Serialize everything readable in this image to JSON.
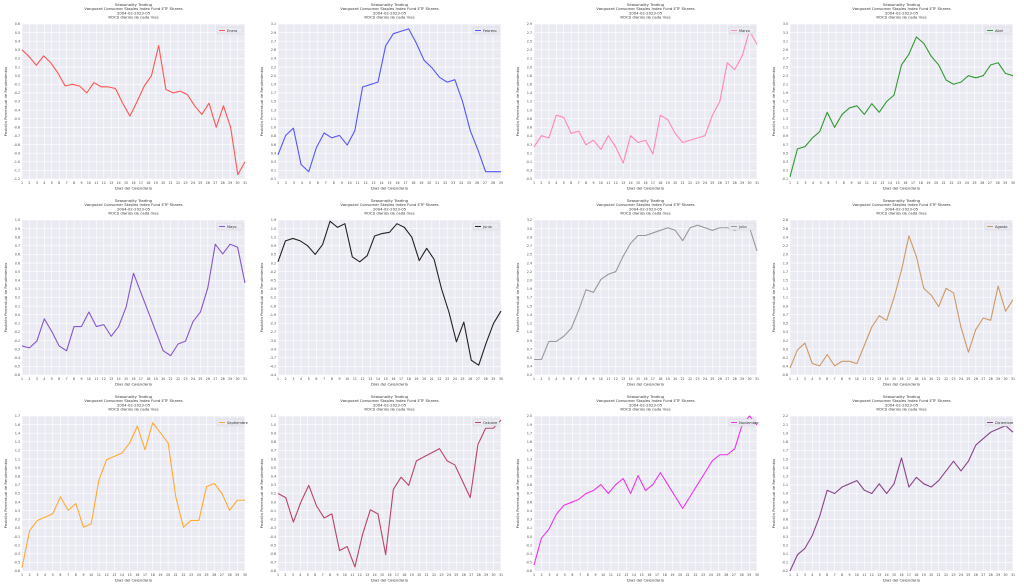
{
  "common": {
    "title_lines": [
      "Seasonality Trading",
      "Vanguard Consumer Staples Index Fund ETF Shares",
      "2004-02-2023-05",
      "ROCS diarios de cada mes"
    ],
    "xlabel": "Dias del Calendario",
    "ylabel": "Posición Porcentual de Rendimientos"
  },
  "chart_data": [
    {
      "type": "line",
      "legend": "Enero",
      "color": "#ff5555",
      "days": 31,
      "ylim": [
        -1.2,
        0.6
      ],
      "values": [
        0.3,
        0.22,
        0.12,
        0.23,
        0.15,
        0.03,
        -0.12,
        -0.1,
        -0.12,
        -0.2,
        -0.08,
        -0.13,
        -0.13,
        -0.15,
        -0.32,
        -0.47,
        -0.3,
        -0.12,
        0.0,
        0.35,
        -0.16,
        -0.2,
        -0.18,
        -0.22,
        -0.35,
        -0.45,
        -0.32,
        -0.6,
        -0.35,
        -0.6,
        -1.15,
        -1.0
      ]
    },
    {
      "type": "line",
      "legend": "Febrero",
      "color": "#5555ff",
      "days": 29,
      "ylim": [
        -0.1,
        3.1
      ],
      "values": [
        0.4,
        0.8,
        0.95,
        0.2,
        0.05,
        0.55,
        0.85,
        0.75,
        0.8,
        0.6,
        0.9,
        1.8,
        1.85,
        1.9,
        2.65,
        2.9,
        2.95,
        3.0,
        2.7,
        2.35,
        2.2,
        2.0,
        1.9,
        1.95,
        1.5,
        0.9,
        0.5,
        0.05,
        0.05,
        0.05
      ]
    },
    {
      "type": "line",
      "legend": "Marzo",
      "color": "#ff88bb",
      "days": 31,
      "ylim": [
        -0.5,
        2.9
      ],
      "values": [
        0.2,
        0.45,
        0.4,
        0.9,
        0.85,
        0.5,
        0.55,
        0.25,
        0.35,
        0.15,
        0.45,
        0.2,
        -0.15,
        0.45,
        0.3,
        0.35,
        0.05,
        0.9,
        0.8,
        0.5,
        0.3,
        0.35,
        0.4,
        0.45,
        0.9,
        1.2,
        2.05,
        1.9,
        2.2,
        2.75,
        2.45
      ]
    },
    {
      "type": "line",
      "legend": "Abril",
      "color": "#339933",
      "days": 30,
      "ylim": [
        -0.1,
        3.5
      ],
      "values": [
        -0.05,
        0.6,
        0.65,
        0.85,
        1.0,
        1.45,
        1.1,
        1.4,
        1.55,
        1.6,
        1.4,
        1.65,
        1.45,
        1.7,
        1.85,
        2.55,
        2.8,
        3.2,
        3.05,
        2.75,
        2.55,
        2.2,
        2.1,
        2.15,
        2.3,
        2.25,
        2.3,
        2.55,
        2.6,
        2.35,
        2.3
      ]
    },
    {
      "type": "line",
      "legend": "Mayo",
      "color": "#8855cc",
      "days": 31,
      "ylim": [
        -0.6,
        1.0
      ],
      "values": [
        -0.3,
        -0.32,
        -0.25,
        -0.02,
        -0.15,
        -0.3,
        -0.35,
        -0.1,
        -0.1,
        0.05,
        -0.1,
        -0.08,
        -0.2,
        -0.1,
        0.1,
        0.45,
        0.25,
        0.05,
        -0.15,
        -0.35,
        -0.4,
        -0.28,
        -0.25,
        -0.05,
        0.05,
        0.3,
        0.75,
        0.65,
        0.75,
        0.72,
        0.35
      ]
    },
    {
      "type": "line",
      "legend": "Junio",
      "color": "#222222",
      "days": 30,
      "ylim": [
        -4.4,
        1.9
      ],
      "values": [
        0.2,
        1.05,
        1.15,
        1.05,
        0.85,
        0.5,
        0.9,
        1.85,
        1.6,
        1.75,
        0.4,
        0.2,
        0.45,
        1.25,
        1.35,
        1.4,
        1.75,
        1.6,
        1.2,
        0.25,
        0.75,
        0.3,
        -0.9,
        -1.85,
        -3.05,
        -2.25,
        -3.8,
        -4.0,
        -3.1,
        -2.3,
        -1.8
      ]
    },
    {
      "type": "line",
      "legend": "Julio",
      "color": "#999999",
      "days": 31,
      "ylim": [
        0.2,
        3.2
      ],
      "values": [
        0.5,
        0.5,
        0.85,
        0.85,
        0.95,
        1.1,
        1.45,
        1.85,
        1.8,
        2.05,
        2.15,
        2.2,
        2.5,
        2.75,
        2.9,
        2.9,
        2.95,
        3.0,
        3.05,
        3.0,
        2.8,
        3.05,
        3.1,
        3.05,
        3.0,
        3.05,
        3.05,
        3.0,
        3.05,
        3.05,
        2.6
      ]
    },
    {
      "type": "line",
      "legend": "Agosto",
      "color": "#cc9966",
      "days": 31,
      "ylim": [
        -0.6,
        2.8
      ],
      "values": [
        -0.45,
        -0.05,
        0.1,
        -0.35,
        -0.4,
        -0.15,
        -0.4,
        -0.3,
        -0.3,
        -0.35,
        0.05,
        0.45,
        0.7,
        0.6,
        1.1,
        1.7,
        2.45,
        2.0,
        1.3,
        1.15,
        0.9,
        1.3,
        1.2,
        0.45,
        -0.1,
        0.4,
        0.65,
        0.6,
        1.35,
        0.8,
        1.05
      ]
    },
    {
      "type": "line",
      "legend": "Septiembre",
      "color": "#ffaa33",
      "days": 30,
      "ylim": [
        -0.6,
        1.7
      ],
      "values": [
        -0.55,
        0.0,
        0.15,
        0.2,
        0.25,
        0.5,
        0.3,
        0.4,
        0.05,
        0.1,
        0.75,
        1.05,
        1.1,
        1.15,
        1.3,
        1.55,
        1.2,
        1.6,
        1.45,
        1.3,
        0.5,
        0.05,
        0.15,
        0.15,
        0.65,
        0.7,
        0.55,
        0.3,
        0.45,
        0.45
      ]
    },
    {
      "type": "line",
      "legend": "Octubre",
      "color": "#bb4466",
      "days": 31,
      "ylim": [
        -0.8,
        1.1
      ],
      "values": [
        0.15,
        0.1,
        -0.2,
        0.05,
        0.25,
        0.0,
        -0.15,
        -0.1,
        -0.55,
        -0.5,
        -0.75,
        -0.35,
        -0.05,
        -0.1,
        -0.6,
        0.2,
        0.35,
        0.25,
        0.55,
        0.6,
        0.65,
        0.7,
        0.55,
        0.5,
        0.3,
        0.1,
        0.75,
        0.95,
        0.95,
        1.05
      ]
    },
    {
      "type": "line",
      "legend": "Noviembre",
      "color": "#ee33ee",
      "days": 30,
      "ylim": [
        -0.6,
        2.0
      ],
      "values": [
        -0.5,
        -0.05,
        0.1,
        0.35,
        0.5,
        0.55,
        0.6,
        0.7,
        0.75,
        0.85,
        0.7,
        0.85,
        0.95,
        0.7,
        1.0,
        0.75,
        0.85,
        1.05,
        0.85,
        0.65,
        0.45,
        0.65,
        0.85,
        1.05,
        1.25,
        1.35,
        1.35,
        1.45,
        1.85,
        2.0,
        1.85
      ]
    },
    {
      "type": "line",
      "legend": "Diciembre",
      "color": "#884488",
      "days": 31,
      "ylim": [
        -0.2,
        2.2
      ],
      "values": [
        -0.2,
        0.05,
        0.15,
        0.35,
        0.65,
        1.05,
        1.0,
        1.1,
        1.15,
        1.2,
        1.05,
        1.0,
        1.15,
        1.0,
        1.15,
        1.55,
        1.1,
        1.25,
        1.15,
        1.1,
        1.2,
        1.35,
        1.5,
        1.35,
        1.5,
        1.75,
        1.85,
        1.95,
        2.0,
        2.05,
        1.95
      ]
    }
  ]
}
